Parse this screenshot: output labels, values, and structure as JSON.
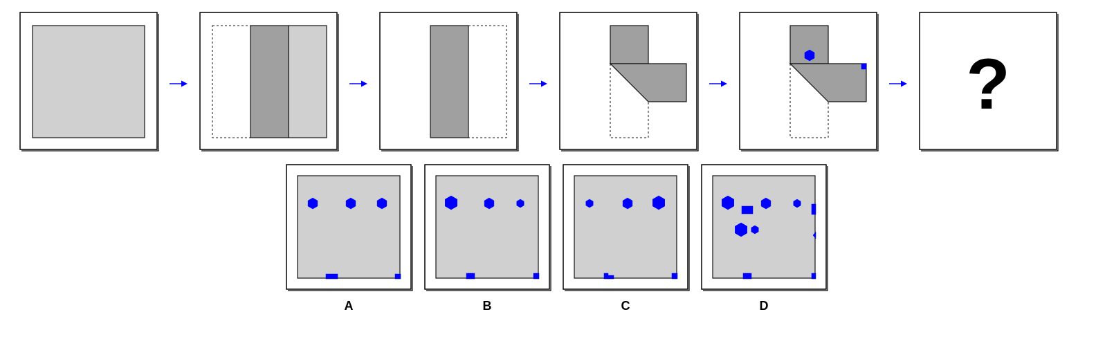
{
  "sequence": {
    "question_mark": "?",
    "arrow_color": "#0000ff",
    "mark_color": "#0000ff",
    "paper_color": "#d0d0d0",
    "folded_color": "#a0a0a0"
  },
  "options": [
    {
      "label": "A"
    },
    {
      "label": "B"
    },
    {
      "label": "C"
    },
    {
      "label": "D"
    }
  ]
}
